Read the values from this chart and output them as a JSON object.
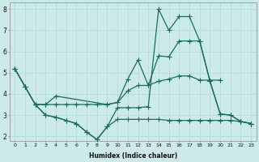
{
  "xlabel": "Humidex (Indice chaleur)",
  "bg_color": "#cceae8",
  "line_color": "#1a6b60",
  "grid_color": "#b8dbd8",
  "xlim": [
    -0.5,
    23.5
  ],
  "ylim": [
    1.8,
    8.3
  ],
  "yticks": [
    2,
    3,
    4,
    5,
    6,
    7,
    8
  ],
  "xticks": [
    0,
    1,
    2,
    3,
    4,
    5,
    6,
    7,
    8,
    9,
    10,
    11,
    12,
    13,
    14,
    15,
    16,
    17,
    18,
    19,
    20,
    21,
    22,
    23
  ],
  "line1_x": [
    0,
    1,
    2,
    3,
    4,
    5,
    6,
    7,
    8,
    9,
    10,
    11,
    12,
    13,
    14,
    15,
    16,
    17,
    18,
    19,
    20,
    21,
    22,
    23
  ],
  "line1_y": [
    5.2,
    4.35,
    3.5,
    3.5,
    3.5,
    3.5,
    3.5,
    3.5,
    3.5,
    3.5,
    3.6,
    4.7,
    5.6,
    4.4,
    5.8,
    5.75,
    6.5,
    6.5,
    6.5,
    4.6,
    3.05,
    3.0,
    2.7,
    2.6
  ],
  "line2_x": [
    0,
    1,
    2,
    3,
    4,
    5,
    6,
    7,
    8,
    9,
    10,
    11,
    12,
    13,
    14,
    15,
    16,
    17,
    18,
    19,
    20,
    21,
    22,
    23
  ],
  "line2_y": [
    5.2,
    4.35,
    3.5,
    3.0,
    2.9,
    2.75,
    2.6,
    2.2,
    1.85,
    2.45,
    3.35,
    3.35,
    3.35,
    3.4,
    8.0,
    7.0,
    7.65,
    7.65,
    6.5,
    4.6,
    3.05,
    3.0,
    2.7,
    2.6
  ],
  "line3_x": [
    2,
    3,
    4,
    5,
    6,
    7,
    8,
    9,
    10,
    11,
    12,
    13,
    14,
    15,
    16,
    17,
    18,
    19,
    20,
    21,
    22,
    23
  ],
  "line3_y": [
    3.5,
    3.0,
    2.9,
    2.75,
    2.6,
    2.2,
    1.85,
    2.45,
    2.8,
    2.8,
    2.8,
    2.8,
    2.8,
    2.75,
    2.75,
    2.75,
    2.75,
    2.75,
    2.75,
    2.75,
    2.7,
    2.6
  ],
  "line4_x": [
    0,
    1,
    2,
    3,
    4,
    9,
    10,
    11,
    12,
    13,
    14,
    15,
    16,
    17,
    18,
    19,
    20
  ],
  "line4_y": [
    5.2,
    4.35,
    3.5,
    3.5,
    3.9,
    3.5,
    3.6,
    4.15,
    4.4,
    4.4,
    4.6,
    4.7,
    4.85,
    4.85,
    4.65,
    4.65,
    4.65
  ]
}
